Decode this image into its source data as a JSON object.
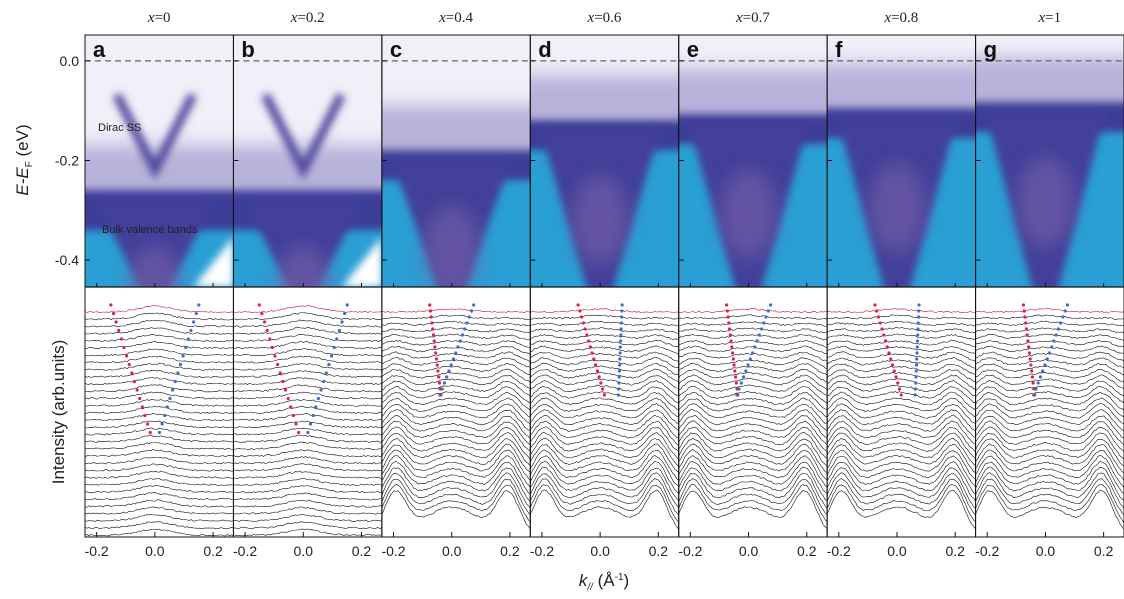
{
  "figure": {
    "panels": [
      {
        "letter": "a",
        "title_var": "x",
        "title_value": "=0"
      },
      {
        "letter": "b",
        "title_var": "x",
        "title_value": "=0.2"
      },
      {
        "letter": "c",
        "title_var": "x",
        "title_value": "=0.4"
      },
      {
        "letter": "d",
        "title_var": "x",
        "title_value": "=0.6"
      },
      {
        "letter": "e",
        "title_var": "x",
        "title_value": "=0.7"
      },
      {
        "letter": "f",
        "title_var": "x",
        "title_value": "=0.8"
      },
      {
        "letter": "g",
        "title_var": "x",
        "title_value": "=1"
      }
    ],
    "xlim": [
      -0.24,
      0.27
    ],
    "xticks": [
      -0.2,
      {
        "value": 0,
        "label": "0.0"
      },
      0.2
    ],
    "ylim": [
      -0.454,
      0.052
    ],
    "yticks": [
      {
        "value": 0,
        "label": "0.0"
      },
      -0.2,
      -0.4
    ],
    "y_label": {
      "main": "E-E",
      "sub": "F",
      "unit": " (eV)"
    },
    "intensity_label": "Intensity (arb.units)",
    "x_label": {
      "main": "k",
      "sub": "//",
      "unit": " (Å",
      "sup": "-1",
      "close": ")"
    },
    "annotations": [
      "Dirac SS",
      "Bulk valence bands"
    ]
  }
}
